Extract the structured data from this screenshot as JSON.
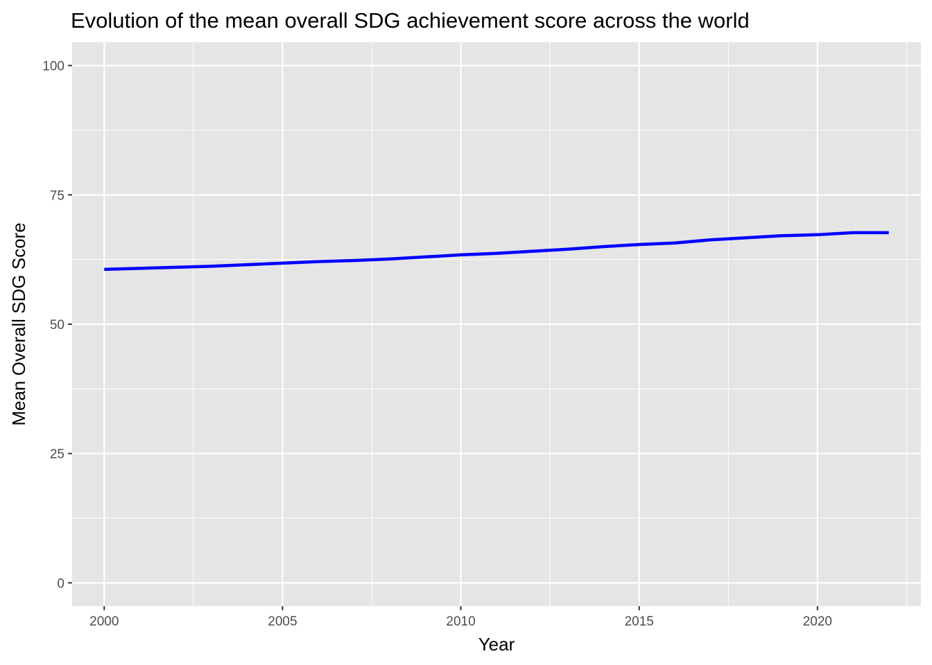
{
  "chart_data": {
    "type": "line",
    "title": "Evolution of the mean overall SDG achievement score across the world",
    "xlabel": "Year",
    "ylabel": "Mean Overall SDG Score",
    "xlim": [
      1999.1,
      2022.9
    ],
    "ylim": [
      -4.5,
      104.5
    ],
    "x_ticks": [
      2000,
      2005,
      2010,
      2015,
      2020
    ],
    "y_ticks": [
      0,
      25,
      50,
      75,
      100
    ],
    "grid": true,
    "legend": "none",
    "panel_background": "#e5e5e5",
    "grid_color": "#ffffff",
    "series": [
      {
        "color": "#0000ff",
        "x": [
          2000,
          2001,
          2002,
          2003,
          2004,
          2005,
          2006,
          2007,
          2008,
          2009,
          2010,
          2011,
          2012,
          2013,
          2014,
          2015,
          2016,
          2017,
          2018,
          2019,
          2020,
          2021,
          2022
        ],
        "values": [
          60.6,
          60.8,
          61.0,
          61.2,
          61.5,
          61.8,
          62.1,
          62.3,
          62.6,
          63.0,
          63.4,
          63.7,
          64.1,
          64.5,
          65.0,
          65.4,
          65.7,
          66.3,
          66.7,
          67.1,
          67.3,
          67.7,
          67.7
        ]
      }
    ]
  }
}
